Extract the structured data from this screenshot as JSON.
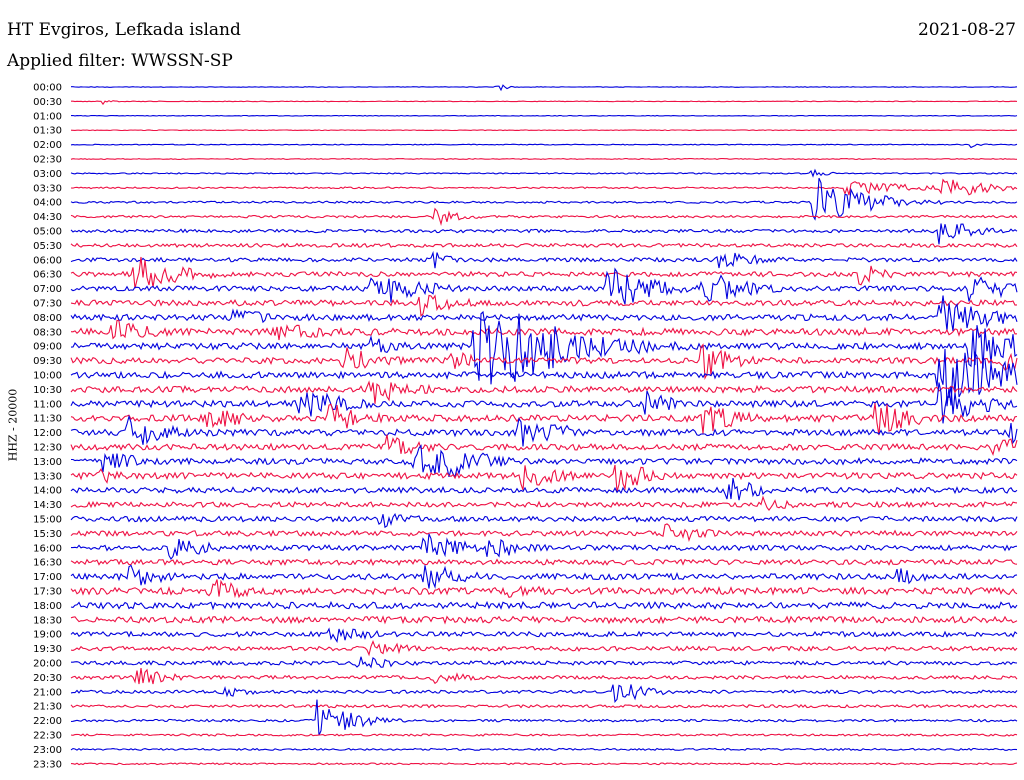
{
  "header": {
    "station": "HT Evgiros, Lefkada island",
    "filter": "Applied filter: WWSSN-SP",
    "date": "2021-08-27"
  },
  "channel_label": "HHZ - 20000",
  "colors": {
    "blue": "#0000dd",
    "red": "#ee1144"
  },
  "chart_data": {
    "type": "line",
    "title": "HT Evgiros, Lefkada island",
    "subtitle": "Applied filter: WWSSN-SP",
    "date": "2021-08-27",
    "ylabel": "HHZ - 20000",
    "row_labels": [
      "00:00",
      "00:30",
      "01:00",
      "01:30",
      "02:00",
      "02:30",
      "03:00",
      "03:30",
      "04:00",
      "04:30",
      "05:00",
      "05:30",
      "06:00",
      "06:30",
      "07:00",
      "07:30",
      "08:00",
      "08:30",
      "09:00",
      "09:30",
      "10:00",
      "10:30",
      "11:00",
      "11:30",
      "12:00",
      "12:30",
      "13:00",
      "13:30",
      "14:00",
      "14:30",
      "15:00",
      "15:30",
      "16:00",
      "16:30",
      "17:00",
      "17:30",
      "18:00",
      "18:30",
      "19:00",
      "19:30",
      "20:00",
      "20:30",
      "21:00",
      "21:30",
      "22:00",
      "22:30",
      "23:00",
      "23:30"
    ],
    "row_minutes": 30,
    "row_colors": [
      "blue",
      "red"
    ],
    "row_noise": [
      0.3,
      0.3,
      0.3,
      0.3,
      0.4,
      0.4,
      0.6,
      0.8,
      1.0,
      1.2,
      1.6,
      1.8,
      2.0,
      2.4,
      2.6,
      2.8,
      3.0,
      3.4,
      3.2,
      3.0,
      3.2,
      3.2,
      3.2,
      3.4,
      3.2,
      3.0,
      3.0,
      3.0,
      2.8,
      2.6,
      2.6,
      2.6,
      2.6,
      2.6,
      3.0,
      3.4,
      3.2,
      3.2,
      2.4,
      2.2,
      2.0,
      1.8,
      1.6,
      1.4,
      1.2,
      1.0,
      0.9,
      0.8
    ],
    "events": [
      {
        "row": 0,
        "minute": 13.5,
        "amp": 5,
        "dur": 0.3
      },
      {
        "row": 1,
        "minute": 1,
        "amp": 3,
        "dur": 0.3
      },
      {
        "row": 4,
        "minute": 28.5,
        "amp": 5,
        "dur": 0.3
      },
      {
        "row": 6,
        "minute": 23.5,
        "amp": 5,
        "dur": 0.5
      },
      {
        "row": 7,
        "minute": 24.5,
        "amp": 10,
        "dur": 1.8
      },
      {
        "row": 7,
        "minute": 27.5,
        "amp": 14,
        "dur": 1.5
      },
      {
        "row": 8,
        "minute": 23.5,
        "amp": 30,
        "dur": 1.5
      },
      {
        "row": 9,
        "minute": 11.5,
        "amp": 10,
        "dur": 0.8
      },
      {
        "row": 10,
        "minute": 27.5,
        "amp": 14,
        "dur": 1.2
      },
      {
        "row": 12,
        "minute": 11.5,
        "amp": 10,
        "dur": 0.5
      },
      {
        "row": 12,
        "minute": 20.5,
        "amp": 10,
        "dur": 1.5
      },
      {
        "row": 13,
        "minute": 2,
        "amp": 20,
        "dur": 1.5
      },
      {
        "row": 13,
        "minute": 25,
        "amp": 14,
        "dur": 0.8
      },
      {
        "row": 14,
        "minute": 9.5,
        "amp": 22,
        "dur": 1.5
      },
      {
        "row": 14,
        "minute": 17,
        "amp": 24,
        "dur": 1.5
      },
      {
        "row": 14,
        "minute": 20,
        "amp": 20,
        "dur": 1.5
      },
      {
        "row": 14,
        "minute": 28.5,
        "amp": 18,
        "dur": 1.2
      },
      {
        "row": 15,
        "minute": 11,
        "amp": 14,
        "dur": 1.2
      },
      {
        "row": 16,
        "minute": 5,
        "amp": 12,
        "dur": 1.2
      },
      {
        "row": 16,
        "minute": 27.5,
        "amp": 26,
        "dur": 1.5
      },
      {
        "row": 17,
        "minute": 1.3,
        "amp": 14,
        "dur": 1.5
      },
      {
        "row": 17,
        "minute": 6.5,
        "amp": 10,
        "dur": 2.0
      },
      {
        "row": 18,
        "minute": 9.5,
        "amp": 10,
        "dur": 1.2
      },
      {
        "row": 18,
        "minute": 12.8,
        "amp": 60,
        "dur": 2.5
      },
      {
        "row": 18,
        "minute": 28.5,
        "amp": 30,
        "dur": 1.5
      },
      {
        "row": 19,
        "minute": 8.6,
        "amp": 16,
        "dur": 1.2
      },
      {
        "row": 19,
        "minute": 12,
        "amp": 12,
        "dur": 1.0
      },
      {
        "row": 19,
        "minute": 20,
        "amp": 20,
        "dur": 1.0
      },
      {
        "row": 19,
        "minute": 29.5,
        "amp": 12,
        "dur": 1.0
      },
      {
        "row": 20,
        "minute": 27.5,
        "amp": 40,
        "dur": 2.0
      },
      {
        "row": 20,
        "minute": 29.2,
        "amp": 16,
        "dur": 1.2
      },
      {
        "row": 21,
        "minute": 9.5,
        "amp": 20,
        "dur": 1.2
      },
      {
        "row": 22,
        "minute": 7.2,
        "amp": 18,
        "dur": 1.5
      },
      {
        "row": 22,
        "minute": 18.2,
        "amp": 14,
        "dur": 1.2
      },
      {
        "row": 22,
        "minute": 27.5,
        "amp": 24,
        "dur": 1.5
      },
      {
        "row": 23,
        "minute": 4.3,
        "amp": 18,
        "dur": 1.0
      },
      {
        "row": 23,
        "minute": 8.2,
        "amp": 18,
        "dur": 1.2
      },
      {
        "row": 23,
        "minute": 20,
        "amp": 18,
        "dur": 1.2
      },
      {
        "row": 23,
        "minute": 25.5,
        "amp": 20,
        "dur": 1.2
      },
      {
        "row": 24,
        "minute": 1.8,
        "amp": 20,
        "dur": 1.2
      },
      {
        "row": 24,
        "minute": 14.2,
        "amp": 16,
        "dur": 1.0
      },
      {
        "row": 24,
        "minute": 15.1,
        "amp": 12,
        "dur": 1.2
      },
      {
        "row": 24,
        "minute": 29.8,
        "amp": 14,
        "dur": 1.0
      },
      {
        "row": 25,
        "minute": 9.9,
        "amp": 14,
        "dur": 1.2
      },
      {
        "row": 25,
        "minute": 29.2,
        "amp": 16,
        "dur": 1.0
      },
      {
        "row": 26,
        "minute": 1.0,
        "amp": 12,
        "dur": 1.5
      },
      {
        "row": 26,
        "minute": 10.8,
        "amp": 24,
        "dur": 1.2
      },
      {
        "row": 26,
        "minute": 12.0,
        "amp": 20,
        "dur": 1.2
      },
      {
        "row": 27,
        "minute": 0.9,
        "amp": 8,
        "dur": 1.5
      },
      {
        "row": 27,
        "minute": 14.3,
        "amp": 16,
        "dur": 1.2
      },
      {
        "row": 27,
        "minute": 17.2,
        "amp": 18,
        "dur": 1.2
      },
      {
        "row": 28,
        "minute": 20.8,
        "amp": 16,
        "dur": 1.0
      },
      {
        "row": 29,
        "minute": 21.9,
        "amp": 8,
        "dur": 1.2
      },
      {
        "row": 30,
        "minute": 9.8,
        "amp": 10,
        "dur": 1.2
      },
      {
        "row": 31,
        "minute": 18.8,
        "amp": 14,
        "dur": 1.2
      },
      {
        "row": 32,
        "minute": 3.1,
        "amp": 14,
        "dur": 1.2
      },
      {
        "row": 32,
        "minute": 11.2,
        "amp": 18,
        "dur": 1.2
      },
      {
        "row": 32,
        "minute": 13.2,
        "amp": 14,
        "dur": 1.2
      },
      {
        "row": 34,
        "minute": 1.7,
        "amp": 14,
        "dur": 1.2
      },
      {
        "row": 34,
        "minute": 11.2,
        "amp": 16,
        "dur": 1.2
      },
      {
        "row": 34,
        "minute": 26.2,
        "amp": 10,
        "dur": 1.5
      },
      {
        "row": 35,
        "minute": 4.4,
        "amp": 14,
        "dur": 1.2
      },
      {
        "row": 35,
        "minute": 13.8,
        "amp": 10,
        "dur": 1.5
      },
      {
        "row": 38,
        "minute": 8.0,
        "amp": 10,
        "dur": 1.5
      },
      {
        "row": 39,
        "minute": 9.4,
        "amp": 10,
        "dur": 1.2
      },
      {
        "row": 40,
        "minute": 9.0,
        "amp": 8,
        "dur": 1.5
      },
      {
        "row": 41,
        "minute": 2.0,
        "amp": 12,
        "dur": 1.0
      },
      {
        "row": 41,
        "minute": 11.4,
        "amp": 8,
        "dur": 1.2
      },
      {
        "row": 42,
        "minute": 4.8,
        "amp": 6,
        "dur": 1.0
      },
      {
        "row": 42,
        "minute": 17.2,
        "amp": 14,
        "dur": 1.0
      },
      {
        "row": 44,
        "minute": 7.8,
        "amp": 26,
        "dur": 1.0
      }
    ]
  }
}
